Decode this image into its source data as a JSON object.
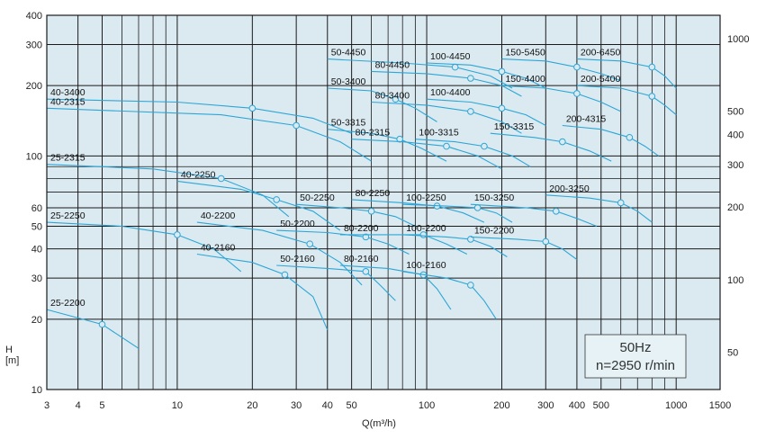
{
  "chart_data": {
    "type": "line",
    "title": "",
    "xlabel": "Q(m³/h)",
    "ylabel": "H\n[m]",
    "x_scale": "log",
    "y_scale": "log",
    "xlim": [
      3,
      1500
    ],
    "ylim": [
      10,
      400
    ],
    "x_ticks": [
      3,
      4,
      5,
      10,
      20,
      30,
      40,
      50,
      100,
      200,
      300,
      400,
      500,
      1000,
      1500
    ],
    "y_ticks_left": [
      10,
      20,
      30,
      40,
      50,
      60,
      100,
      200,
      300,
      400
    ],
    "y_ticks_right": [
      50,
      100,
      200,
      300,
      400,
      500,
      1000
    ],
    "info_box": {
      "frequency": "50Hz",
      "speed": "n=2950 r/min"
    },
    "series": [
      {
        "label": "25-2200",
        "points": [
          [
            3,
            22
          ],
          [
            5,
            19
          ],
          [
            7,
            15
          ]
        ]
      },
      {
        "label": "25-2250",
        "points": [
          [
            3,
            52
          ],
          [
            6,
            50
          ],
          [
            10,
            46
          ],
          [
            14,
            40
          ],
          [
            18,
            32
          ]
        ]
      },
      {
        "label": "25-2315",
        "points": [
          [
            3,
            92
          ],
          [
            8,
            88
          ],
          [
            15,
            80
          ],
          [
            22,
            68
          ],
          [
            28,
            55
          ]
        ]
      },
      {
        "label": "40-3400",
        "points": [
          [
            3,
            175
          ],
          [
            10,
            170
          ],
          [
            20,
            160
          ],
          [
            35,
            145
          ],
          [
            50,
            125
          ]
        ]
      },
      {
        "label": "40-2315",
        "points": [
          [
            3,
            160
          ],
          [
            15,
            150
          ],
          [
            30,
            135
          ],
          [
            45,
            115
          ],
          [
            60,
            95
          ]
        ]
      },
      {
        "label": "40-2250",
        "points": [
          [
            10,
            78
          ],
          [
            18,
            72
          ],
          [
            25,
            65
          ],
          [
            35,
            58
          ],
          [
            45,
            48
          ]
        ]
      },
      {
        "label": "40-2200",
        "points": [
          [
            12,
            52
          ],
          [
            22,
            48
          ],
          [
            34,
            42
          ],
          [
            45,
            35
          ],
          [
            55,
            28
          ]
        ]
      },
      {
        "label": "40-2160",
        "points": [
          [
            12,
            38
          ],
          [
            20,
            35
          ],
          [
            27,
            31
          ],
          [
            35,
            25
          ],
          [
            40,
            18
          ]
        ]
      },
      {
        "label": "50-4450",
        "points": [
          [
            40,
            260
          ],
          [
            80,
            250
          ],
          [
            130,
            240
          ],
          [
            180,
            220
          ],
          [
            220,
            195
          ]
        ]
      },
      {
        "label": "50-3400",
        "points": [
          [
            40,
            195
          ],
          [
            60,
            190
          ],
          [
            75,
            175
          ],
          [
            90,
            160
          ],
          [
            110,
            140
          ]
        ]
      },
      {
        "label": "50-3315",
        "points": [
          [
            40,
            130
          ],
          [
            60,
            125
          ],
          [
            78,
            118
          ],
          [
            95,
            108
          ],
          [
            120,
            95
          ]
        ]
      },
      {
        "label": "50-2250",
        "points": [
          [
            30,
            62
          ],
          [
            45,
            60
          ],
          [
            60,
            58
          ],
          [
            75,
            55
          ],
          [
            90,
            50
          ]
        ]
      },
      {
        "label": "50-2200",
        "points": [
          [
            25,
            48
          ],
          [
            40,
            47
          ],
          [
            57,
            45
          ],
          [
            70,
            42
          ],
          [
            85,
            38
          ]
        ]
      },
      {
        "label": "50-2160",
        "points": [
          [
            25,
            34
          ],
          [
            40,
            33
          ],
          [
            57,
            32
          ],
          [
            65,
            28
          ],
          [
            75,
            24
          ]
        ]
      },
      {
        "label": "80-4450",
        "points": [
          [
            60,
            230
          ],
          [
            100,
            225
          ],
          [
            150,
            215
          ],
          [
            200,
            200
          ],
          [
            240,
            180
          ]
        ]
      },
      {
        "label": "80-3400",
        "points": [
          [
            60,
            170
          ],
          [
            100,
            165
          ],
          [
            150,
            155
          ],
          [
            200,
            140
          ],
          [
            240,
            125
          ]
        ]
      },
      {
        "label": "80-2315",
        "points": [
          [
            50,
            118
          ],
          [
            80,
            115
          ],
          [
            120,
            110
          ],
          [
            160,
            100
          ],
          [
            200,
            88
          ]
        ]
      },
      {
        "label": "80-2250",
        "points": [
          [
            50,
            65
          ],
          [
            80,
            63
          ],
          [
            110,
            61
          ],
          [
            140,
            57
          ],
          [
            170,
            52
          ]
        ]
      },
      {
        "label": "80-2200",
        "points": [
          [
            45,
            46
          ],
          [
            70,
            46
          ],
          [
            97,
            46
          ],
          [
            120,
            42
          ],
          [
            145,
            38
          ]
        ]
      },
      {
        "label": "80-2160",
        "points": [
          [
            45,
            34
          ],
          [
            70,
            33
          ],
          [
            97,
            31
          ],
          [
            110,
            27
          ],
          [
            125,
            22
          ]
        ]
      },
      {
        "label": "100-4450",
        "points": [
          [
            100,
            250
          ],
          [
            150,
            245
          ],
          [
            200,
            230
          ],
          [
            250,
            215
          ],
          [
            300,
            195
          ]
        ]
      },
      {
        "label": "100-4400",
        "points": [
          [
            100,
            175
          ],
          [
            150,
            170
          ],
          [
            200,
            160
          ],
          [
            250,
            150
          ],
          [
            300,
            135
          ]
        ]
      },
      {
        "label": "100-3315",
        "points": [
          [
            90,
            118
          ],
          [
            130,
            115
          ],
          [
            170,
            110
          ],
          [
            220,
            100
          ],
          [
            260,
            90
          ]
        ]
      },
      {
        "label": "100-2250",
        "points": [
          [
            80,
            62
          ],
          [
            120,
            61
          ],
          [
            160,
            60
          ],
          [
            190,
            57
          ],
          [
            220,
            52
          ]
        ]
      },
      {
        "label": "100-2200",
        "points": [
          [
            80,
            46
          ],
          [
            120,
            45
          ],
          [
            150,
            44
          ],
          [
            180,
            41
          ],
          [
            210,
            37
          ]
        ]
      },
      {
        "label": "100-2160",
        "points": [
          [
            80,
            32
          ],
          [
            120,
            30
          ],
          [
            150,
            28
          ],
          [
            170,
            24
          ],
          [
            190,
            20
          ]
        ]
      },
      {
        "label": "150-5450",
        "points": [
          [
            200,
            260
          ],
          [
            300,
            255
          ],
          [
            400,
            240
          ],
          [
            500,
            225
          ],
          [
            600,
            210
          ]
        ]
      },
      {
        "label": "150-4400",
        "points": [
          [
            200,
            200
          ],
          [
            300,
            195
          ],
          [
            400,
            185
          ],
          [
            500,
            170
          ],
          [
            600,
            155
          ]
        ]
      },
      {
        "label": "150-3315",
        "points": [
          [
            180,
            125
          ],
          [
            270,
            120
          ],
          [
            350,
            115
          ],
          [
            450,
            105
          ],
          [
            550,
            95
          ]
        ]
      },
      {
        "label": "150-3250",
        "points": [
          [
            150,
            62
          ],
          [
            250,
            60
          ],
          [
            330,
            58
          ],
          [
            400,
            54
          ],
          [
            480,
            50
          ]
        ]
      },
      {
        "label": "150-2200",
        "points": [
          [
            150,
            45
          ],
          [
            230,
            44
          ],
          [
            300,
            43
          ],
          [
            350,
            40
          ],
          [
            400,
            36
          ]
        ]
      },
      {
        "label": "200-6450",
        "points": [
          [
            400,
            260
          ],
          [
            600,
            255
          ],
          [
            800,
            240
          ],
          [
            900,
            220
          ],
          [
            1000,
            195
          ]
        ]
      },
      {
        "label": "200-5400",
        "points": [
          [
            400,
            200
          ],
          [
            600,
            195
          ],
          [
            800,
            180
          ],
          [
            900,
            165
          ],
          [
            1000,
            150
          ]
        ]
      },
      {
        "label": "200-4315",
        "points": [
          [
            350,
            135
          ],
          [
            500,
            130
          ],
          [
            650,
            120
          ],
          [
            750,
            110
          ],
          [
            850,
            100
          ]
        ]
      },
      {
        "label": "200-3250",
        "points": [
          [
            300,
            68
          ],
          [
            450,
            66
          ],
          [
            600,
            63
          ],
          [
            700,
            58
          ],
          [
            800,
            52
          ]
        ]
      }
    ],
    "grid": true,
    "legend": "none"
  }
}
